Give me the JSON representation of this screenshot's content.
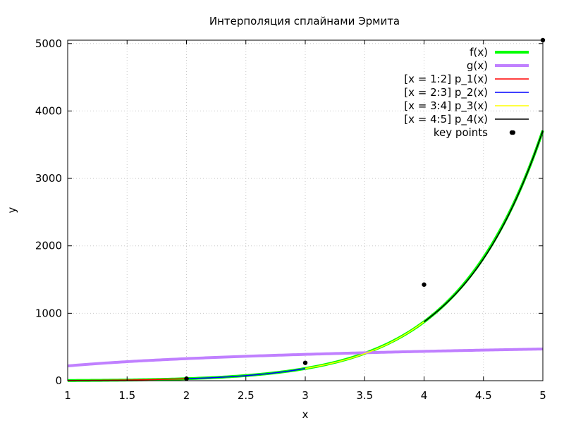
{
  "chart_data": {
    "type": "line",
    "title": "Интерполяция сплайнами Эрмита",
    "xlabel": "x",
    "ylabel": "y",
    "xlim": [
      1,
      5
    ],
    "ylim": [
      0,
      5050
    ],
    "xticks": [
      "1",
      "1.5",
      "2",
      "2.5",
      "3",
      "3.5",
      "4",
      "4.5",
      "5"
    ],
    "yticks": [
      "0",
      "1000",
      "2000",
      "3000",
      "4000",
      "5000"
    ],
    "grid": true,
    "legend_position": "top-right",
    "series": [
      {
        "name": "f(x)",
        "color": "#00ff00",
        "expr": "x^2*e^x",
        "x_range": [
          1,
          5
        ],
        "width": 4
      },
      {
        "name": "g(x)",
        "color": "#c080ff",
        "expr": "approx 219 + 156*ln(x)",
        "x_range": [
          1,
          5
        ],
        "width": 4
      },
      {
        "name": "[x = 1:2] p_1(x)",
        "color": "#ff0000",
        "expr": "hermite spline piece",
        "x_range": [
          1,
          2
        ],
        "width": 1.5
      },
      {
        "name": "[x = 2:3] p_2(x)",
        "color": "#0000ff",
        "expr": "hermite spline piece",
        "x_range": [
          2,
          3
        ],
        "width": 1.5
      },
      {
        "name": "[x = 3:4] p_3(x)",
        "color": "#ffff00",
        "expr": "hermite spline piece",
        "x_range": [
          3,
          4
        ],
        "width": 1.5
      },
      {
        "name": "[x = 4:5] p_4(x)",
        "color": "#000000",
        "expr": "hermite spline piece",
        "x_range": [
          4,
          5
        ],
        "width": 1.5
      }
    ],
    "key_points": {
      "name": "key points",
      "color": "#000000",
      "points": [
        {
          "x": 2,
          "y": 30
        },
        {
          "x": 3,
          "y": 265
        },
        {
          "x": 4,
          "y": 1425
        },
        {
          "x": 4.75,
          "y": 3680
        },
        {
          "x": 5,
          "y": 5050
        }
      ]
    }
  }
}
